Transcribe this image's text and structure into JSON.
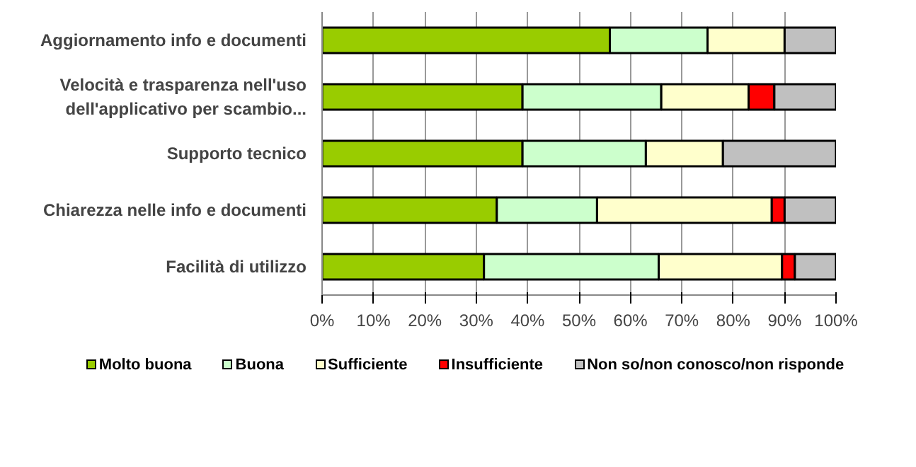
{
  "chart_data": {
    "type": "bar",
    "orientation": "horizontal",
    "stacked": true,
    "categories": [
      "Aggiornamento info e documenti",
      "Velocità e trasparenza nell'uso\ndell'applicativo per scambio...",
      "Supporto tecnico",
      "Chiarezza nelle info e documenti",
      "Facilità di utilizzo"
    ],
    "series": [
      {
        "name": "Molto buona",
        "color": "#99cc00",
        "values": [
          56,
          39,
          39,
          34,
          31.5
        ]
      },
      {
        "name": "Buona",
        "color": "#ccffcc",
        "values": [
          19,
          27,
          24,
          19.5,
          34
        ]
      },
      {
        "name": "Sufficiente",
        "color": "#ffffcc",
        "values": [
          15,
          17,
          15,
          34,
          24
        ]
      },
      {
        "name": "Insufficiente",
        "color": "#ff0000",
        "values": [
          0,
          5,
          0,
          2.5,
          2.5
        ]
      },
      {
        "name": "Non so/non conosco/non risponde",
        "color": "#c0c0c0",
        "values": [
          10,
          12,
          22,
          10,
          8
        ]
      }
    ],
    "xlim": [
      0,
      100
    ],
    "xticks": [
      {
        "value": 0,
        "label": "0%"
      },
      {
        "value": 10,
        "label": "10%"
      },
      {
        "value": 20,
        "label": "20%"
      },
      {
        "value": 30,
        "label": "30%"
      },
      {
        "value": 40,
        "label": "40%"
      },
      {
        "value": 50,
        "label": "50%"
      },
      {
        "value": 60,
        "label": "60%"
      },
      {
        "value": 70,
        "label": "70%"
      },
      {
        "value": 80,
        "label": "80%"
      },
      {
        "value": 90,
        "label": "90%"
      },
      {
        "value": 100,
        "label": "100%"
      }
    ],
    "grid": "x",
    "legend": "bottom"
  }
}
